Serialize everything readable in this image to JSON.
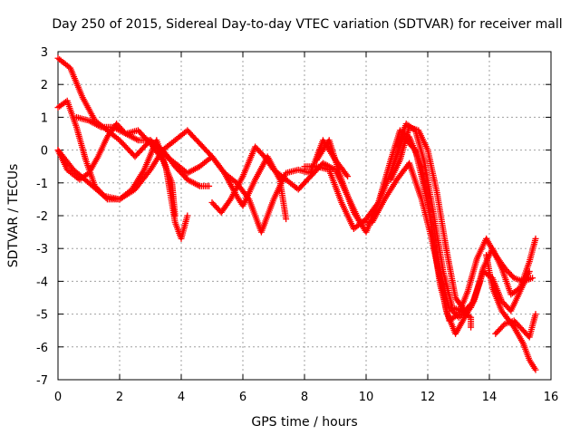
{
  "chart_data": {
    "type": "scatter",
    "title": "Day 250 of 2015, Sidereal Day-to-day VTEC variation (SDTVAR) for receiver mall",
    "xlabel": "GPS time / hours",
    "ylabel": "SDTVAR / TECUs",
    "xlim": [
      0,
      16
    ],
    "ylim": [
      -7,
      3
    ],
    "xticks": [
      "0",
      "2",
      "4",
      "6",
      "8",
      "10",
      "12",
      "14",
      "16"
    ],
    "yticks": [
      "3",
      "2",
      "1",
      "0",
      "-1",
      "-2",
      "-3",
      "-4",
      "-5",
      "-6",
      "-7"
    ],
    "grid": true,
    "marker": "+",
    "color": "#ff0000",
    "series": [
      {
        "points": [
          [
            0.0,
            2.8
          ],
          [
            0.4,
            2.5
          ],
          [
            0.8,
            1.6
          ],
          [
            1.2,
            0.9
          ],
          [
            1.6,
            0.6
          ],
          [
            2.0,
            0.3
          ],
          [
            2.5,
            -0.2
          ],
          [
            3.0,
            0.3
          ],
          [
            3.4,
            0.0
          ],
          [
            3.8,
            -0.5
          ],
          [
            4.2,
            -0.9
          ],
          [
            4.6,
            -1.1
          ],
          [
            4.9,
            -1.1
          ]
        ]
      },
      {
        "points": [
          [
            0.0,
            1.3
          ],
          [
            0.3,
            1.5
          ],
          [
            0.6,
            0.7
          ],
          [
            0.9,
            -0.3
          ],
          [
            1.2,
            -1.1
          ],
          [
            1.6,
            -1.5
          ],
          [
            2.0,
            -1.5
          ],
          [
            2.4,
            -1.2
          ],
          [
            2.8,
            -0.6
          ],
          [
            3.2,
            0.3
          ],
          [
            3.5,
            -0.5
          ],
          [
            3.8,
            -2.2
          ],
          [
            4.0,
            -2.7
          ],
          [
            4.2,
            -2.0
          ]
        ]
      },
      {
        "points": [
          [
            0.0,
            0.0
          ],
          [
            0.3,
            -0.6
          ],
          [
            0.7,
            -0.9
          ],
          [
            1.0,
            -0.7
          ],
          [
            1.3,
            -0.2
          ],
          [
            1.6,
            0.4
          ],
          [
            1.9,
            0.8
          ],
          [
            2.2,
            0.5
          ],
          [
            2.6,
            0.6
          ],
          [
            3.0,
            0.2
          ],
          [
            3.4,
            -0.3
          ],
          [
            3.7,
            -1.0
          ],
          [
            3.8,
            -2.0
          ]
        ]
      },
      {
        "points": [
          [
            0.0,
            0.0
          ],
          [
            0.5,
            -0.6
          ],
          [
            1.0,
            -1.0
          ],
          [
            1.5,
            -1.4
          ],
          [
            2.0,
            -1.5
          ],
          [
            2.5,
            -1.2
          ],
          [
            3.0,
            -0.6
          ],
          [
            3.4,
            0.0
          ],
          [
            3.8,
            0.3
          ],
          [
            4.2,
            0.6
          ],
          [
            4.6,
            0.2
          ],
          [
            5.0,
            -0.2
          ],
          [
            5.4,
            -0.7
          ],
          [
            5.8,
            -1.0
          ],
          [
            6.2,
            -1.5
          ],
          [
            6.6,
            -2.5
          ],
          [
            7.0,
            -1.5
          ],
          [
            7.4,
            -0.7
          ],
          [
            7.8,
            -0.6
          ],
          [
            8.2,
            -0.7
          ],
          [
            8.6,
            0.3
          ],
          [
            9.0,
            -0.3
          ],
          [
            9.4,
            -0.8
          ]
        ]
      },
      {
        "points": [
          [
            0.6,
            1.0
          ],
          [
            1.0,
            0.9
          ],
          [
            1.4,
            0.7
          ],
          [
            1.8,
            0.7
          ],
          [
            2.2,
            0.5
          ],
          [
            2.6,
            0.3
          ],
          [
            3.0,
            0.3
          ],
          [
            3.4,
            -0.1
          ],
          [
            3.8,
            -0.4
          ],
          [
            4.2,
            -0.7
          ],
          [
            4.6,
            -0.5
          ],
          [
            5.0,
            -0.2
          ],
          [
            5.4,
            -0.7
          ],
          [
            5.8,
            -1.4
          ],
          [
            6.0,
            -1.7
          ],
          [
            6.4,
            -0.9
          ],
          [
            6.8,
            -0.2
          ],
          [
            7.2,
            -0.9
          ],
          [
            7.4,
            -2.1
          ]
        ]
      },
      {
        "points": [
          [
            5.0,
            -1.6
          ],
          [
            5.3,
            -1.9
          ],
          [
            5.6,
            -1.5
          ],
          [
            6.0,
            -0.8
          ],
          [
            6.4,
            0.1
          ],
          [
            6.7,
            -0.2
          ],
          [
            7.0,
            -0.6
          ],
          [
            7.4,
            -0.9
          ],
          [
            7.8,
            -1.2
          ],
          [
            8.2,
            -0.8
          ],
          [
            8.6,
            -0.4
          ],
          [
            9.0,
            -0.6
          ],
          [
            9.4,
            -1.4
          ],
          [
            9.8,
            -2.2
          ],
          [
            10.2,
            -2.2
          ],
          [
            10.6,
            -1.5
          ],
          [
            11.0,
            -0.9
          ],
          [
            11.4,
            -0.4
          ],
          [
            11.8,
            -1.5
          ],
          [
            12.1,
            -2.6
          ],
          [
            12.4,
            -3.9
          ],
          [
            12.7,
            -4.8
          ],
          [
            13.0,
            -5.1
          ],
          [
            13.4,
            -4.8
          ],
          [
            13.7,
            -4.0
          ]
        ]
      },
      {
        "points": [
          [
            8.0,
            -0.5
          ],
          [
            8.4,
            -0.5
          ],
          [
            8.8,
            -0.6
          ],
          [
            9.2,
            -1.6
          ],
          [
            9.6,
            -2.4
          ],
          [
            10.0,
            -2.1
          ],
          [
            10.4,
            -1.6
          ],
          [
            10.8,
            -0.7
          ],
          [
            11.2,
            0.4
          ],
          [
            11.6,
            0.0
          ],
          [
            12.0,
            -1.6
          ],
          [
            12.3,
            -3.4
          ],
          [
            12.6,
            -4.9
          ],
          [
            12.9,
            -5.6
          ],
          [
            13.2,
            -5.1
          ],
          [
            13.5,
            -4.6
          ],
          [
            13.8,
            -3.7
          ],
          [
            14.1,
            -3.9
          ],
          [
            14.4,
            -4.6
          ],
          [
            14.7,
            -4.9
          ],
          [
            15.0,
            -4.3
          ],
          [
            15.3,
            -3.7
          ]
        ]
      },
      {
        "points": [
          [
            8.4,
            -0.3
          ],
          [
            8.8,
            0.3
          ],
          [
            9.2,
            -0.9
          ],
          [
            9.6,
            -1.9
          ],
          [
            10.0,
            -2.5
          ],
          [
            10.4,
            -1.6
          ],
          [
            10.8,
            -0.3
          ],
          [
            11.1,
            0.6
          ],
          [
            11.4,
            0.4
          ],
          [
            11.8,
            -0.5
          ],
          [
            12.1,
            -2.2
          ],
          [
            12.4,
            -4.1
          ],
          [
            12.7,
            -5.2
          ],
          [
            13.0,
            -5.0
          ],
          [
            13.3,
            -4.3
          ],
          [
            13.6,
            -3.3
          ],
          [
            13.9,
            -2.7
          ],
          [
            14.2,
            -3.2
          ],
          [
            14.5,
            -3.6
          ],
          [
            14.8,
            -3.9
          ],
          [
            15.1,
            -4.0
          ],
          [
            15.4,
            -3.9
          ]
        ]
      },
      {
        "points": [
          [
            10.8,
            -0.9
          ],
          [
            11.1,
            -0.3
          ],
          [
            11.4,
            0.7
          ],
          [
            11.7,
            0.6
          ],
          [
            12.0,
            0.0
          ],
          [
            12.3,
            -1.3
          ],
          [
            12.6,
            -3.0
          ],
          [
            12.9,
            -4.5
          ],
          [
            13.2,
            -4.9
          ],
          [
            13.5,
            -4.6
          ],
          [
            13.8,
            -3.6
          ],
          [
            14.1,
            -3.0
          ],
          [
            14.4,
            -3.6
          ],
          [
            14.7,
            -4.4
          ],
          [
            15.0,
            -4.2
          ],
          [
            15.3,
            -3.4
          ],
          [
            15.5,
            -2.7
          ]
        ]
      },
      {
        "points": [
          [
            11.0,
            0.1
          ],
          [
            11.3,
            0.8
          ],
          [
            11.6,
            0.6
          ],
          [
            11.9,
            -0.4
          ],
          [
            12.2,
            -2.0
          ],
          [
            12.5,
            -3.7
          ],
          [
            12.8,
            -4.8
          ],
          [
            13.1,
            -4.9
          ],
          [
            13.4,
            -5.1
          ],
          [
            13.4,
            -5.4
          ]
        ]
      },
      {
        "points": [
          [
            13.9,
            -3.2
          ],
          [
            14.1,
            -4.2
          ],
          [
            14.4,
            -4.9
          ],
          [
            14.8,
            -5.4
          ],
          [
            15.1,
            -5.9
          ],
          [
            15.3,
            -6.4
          ],
          [
            15.5,
            -6.7
          ]
        ]
      },
      {
        "points": [
          [
            14.2,
            -5.6
          ],
          [
            14.5,
            -5.3
          ],
          [
            14.8,
            -5.2
          ],
          [
            15.1,
            -5.5
          ],
          [
            15.3,
            -5.7
          ],
          [
            15.5,
            -5.0
          ]
        ]
      }
    ]
  }
}
